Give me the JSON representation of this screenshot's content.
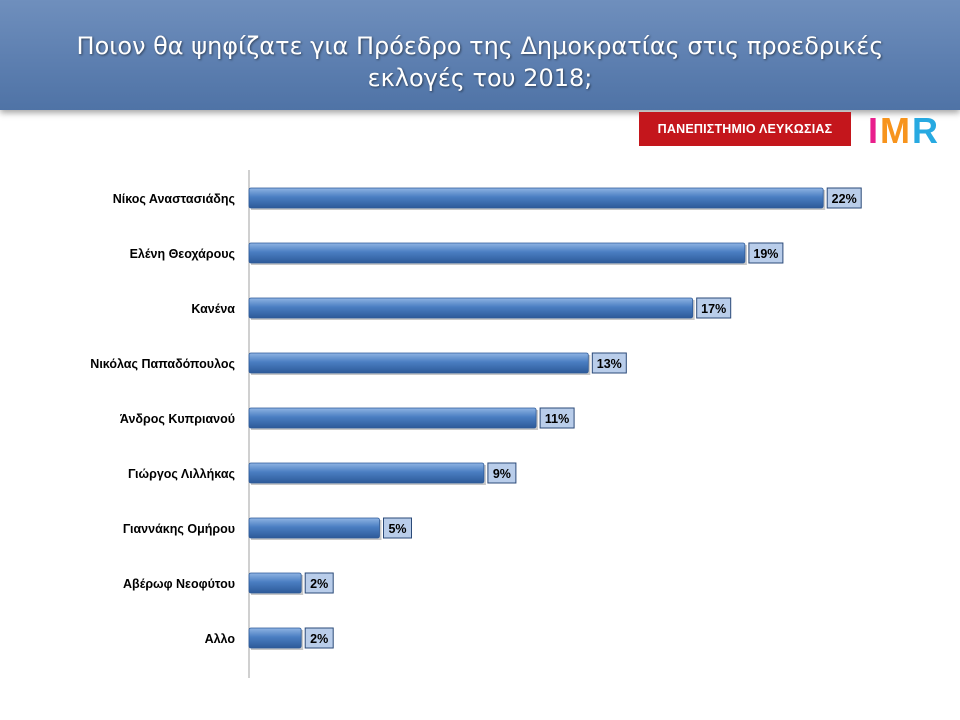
{
  "header": {
    "title": "Ποιον θα ψηφίζατε για Πρόεδρο της Δημοκρατίας στις προεδρικές εκλογές του 2018;"
  },
  "university_badge": {
    "label": "ΠΑΝΕΠΙΣΤΗΜΙΟ ΛΕΥΚΩΣΙΑΣ"
  },
  "logo": {
    "text": "IMR",
    "colors": [
      "#e91e8c",
      "#f7941d",
      "#27a9e1"
    ]
  },
  "colors": {
    "bar": "#4a7ec2",
    "label_box": "#b9cdea",
    "header": "#5d7fb0"
  },
  "chart_data": {
    "type": "bar",
    "orientation": "horizontal",
    "categories": [
      "Νίκος Αναστασιάδης",
      "Ελένη Θεοχάρους",
      "Κανένα",
      "Νικόλας Παπαδόπουλος",
      "Άνδρος Κυπριανού",
      "Γιώργος Λιλλήκας",
      "Γιαννάκης Ομήρου",
      "Αβέρωφ Νεοφύτου",
      "Αλλο"
    ],
    "values": [
      22,
      19,
      17,
      13,
      11,
      9,
      5,
      2,
      2
    ],
    "data_labels": [
      "22%",
      "19%",
      "17%",
      "13%",
      "11%",
      "9%",
      "5%",
      "2%",
      "2%"
    ],
    "unit": "%",
    "xlim": [
      0,
      24
    ],
    "grid": false,
    "legend": "none"
  }
}
